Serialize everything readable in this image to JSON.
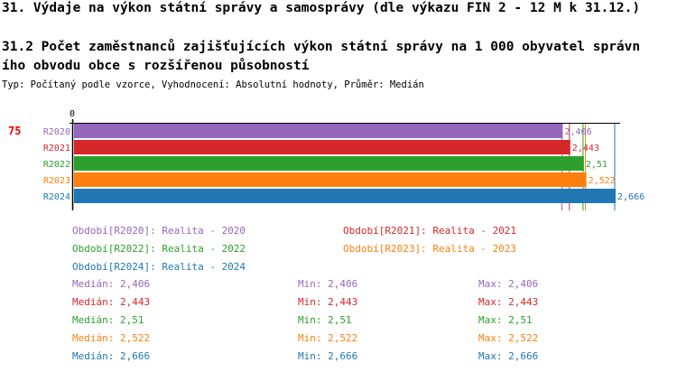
{
  "title": "31. Výdaje na výkon státní správy a samosprávy (dle výkazu FIN 2 - 12 M k 31.12.)",
  "subtitle_line1": "31.2 Počet zaměstnanců zajišťujících výkon státní správy na 1 000 obyvatel správn",
  "subtitle_line2": "ího obvodu obce s rozšířenou působností",
  "type_line": "Typ: Počítaný podle vzorce, Vyhodnocení: Absolutní hodnoty, Průměr: Medián",
  "row_id": "75",
  "chart_data": {
    "type": "bar",
    "orientation": "horizontal",
    "categories": [
      "R2020",
      "R2021",
      "R2022",
      "R2023",
      "R2024"
    ],
    "values": [
      2.406,
      2.443,
      2.51,
      2.522,
      2.666
    ],
    "value_labels": [
      "2,406",
      "2,443",
      "2,51",
      "2,522",
      "2,666"
    ],
    "colors": [
      "#9467bd",
      "#d62728",
      "#2ca02c",
      "#ff7f0e",
      "#1f77b4"
    ],
    "xlim": [
      0,
      2.666
    ],
    "x_tick_label": "0"
  },
  "legend": [
    "Období[R2020]: Realita - 2020",
    "Období[R2021]: Realita - 2021",
    "Období[R2022]: Realita - 2022",
    "Období[R2023]: Realita - 2023",
    "Období[R2024]: Realita - 2024"
  ],
  "stats": [
    {
      "median": "Medián: 2,406",
      "min": "Min: 2,406",
      "max": "Max: 2,406"
    },
    {
      "median": "Medián: 2,443",
      "min": "Min: 2,443",
      "max": "Max: 2,443"
    },
    {
      "median": "Medián: 2,51",
      "min": "Min: 2,51",
      "max": "Max: 2,51"
    },
    {
      "median": "Medián: 2,522",
      "min": "Min: 2,522",
      "max": "Max: 2,522"
    },
    {
      "median": "Medián: 2,666",
      "min": "Min: 2,666",
      "max": "Max: 2,666"
    }
  ]
}
